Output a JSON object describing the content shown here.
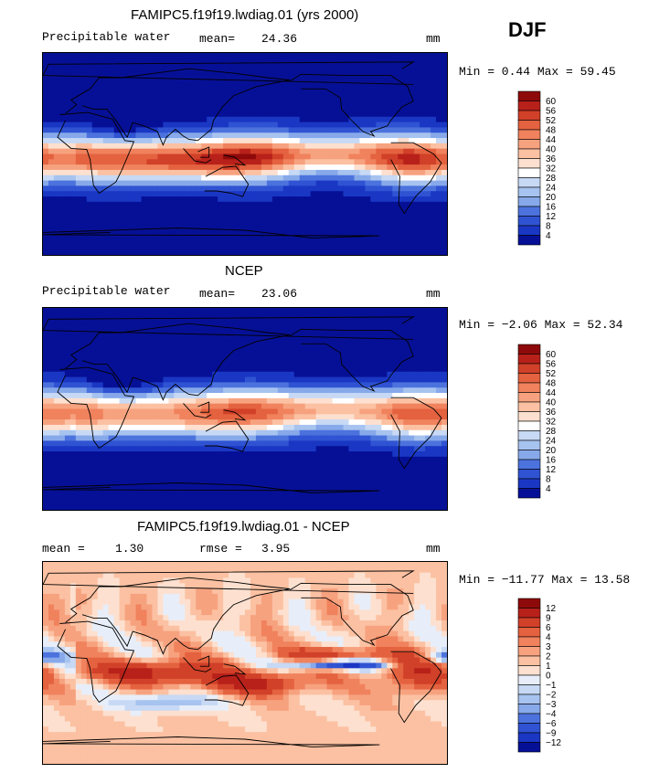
{
  "season": "DJF",
  "palette_warm": [
    "#fde0cf",
    "#fbc1a2",
    "#f7a27f",
    "#f0825d",
    "#e4623f",
    "#d14028",
    "#b8211a",
    "#8e0a0a"
  ],
  "palette_cool": [
    "#e7eef9",
    "#c7d9f4",
    "#a7c3ef",
    "#87a9ea",
    "#6a8fe4",
    "#4c72dd",
    "#2f53d2",
    "#1a37c4",
    "#0c20b0",
    "#061096",
    "#02086f"
  ],
  "panels": [
    {
      "title": "FAMIPC5.f19f19.lwdiag.01 (yrs 2000)",
      "variable": "Precipitable water",
      "stat1": "mean=",
      "stat1_value": "24.36",
      "units": "mm",
      "minmax": "Min =   0.44 Max =  59.45",
      "colorbar_levels": [
        "60",
        "56",
        "52",
        "48",
        "44",
        "40",
        "36",
        "32",
        "28",
        "24",
        "20",
        "16",
        "12",
        "8",
        "4"
      ],
      "colorbar_colors": [
        "#8e0a0a",
        "#b8211a",
        "#d14028",
        "#e4623f",
        "#f0825d",
        "#f7a27f",
        "#fbc1a2",
        "#fde0cf",
        "#ffffff",
        "#c7d9f4",
        "#a7c3ef",
        "#87a9ea",
        "#4c72dd",
        "#2f53d2",
        "#1a37c4",
        "#061096"
      ],
      "field": "model"
    },
    {
      "title": "NCEP",
      "variable": "Precipitable water",
      "stat1": "mean=",
      "stat1_value": "23.06",
      "units": "mm",
      "minmax": "Min =  −2.06 Max =  52.34",
      "colorbar_levels": [
        "60",
        "56",
        "52",
        "48",
        "44",
        "40",
        "36",
        "32",
        "28",
        "24",
        "20",
        "16",
        "12",
        "8",
        "4"
      ],
      "colorbar_colors": [
        "#8e0a0a",
        "#b8211a",
        "#d14028",
        "#e4623f",
        "#f0825d",
        "#f7a27f",
        "#fbc1a2",
        "#fde0cf",
        "#ffffff",
        "#c7d9f4",
        "#a7c3ef",
        "#87a9ea",
        "#4c72dd",
        "#2f53d2",
        "#1a37c4",
        "#061096"
      ],
      "field": "obs"
    },
    {
      "title": "FAMIPC5.f19f19.lwdiag.01 - NCEP",
      "variable": "",
      "stat1": "mean =",
      "stat1_value": "1.30",
      "stat2": "rmse =",
      "stat2_value": "3.95",
      "units": "mm",
      "minmax": "Min = −11.77 Max =  13.58",
      "colorbar_levels": [
        "12",
        "9",
        "6",
        "4",
        "3",
        "2",
        "1",
        "0",
        "−1",
        "−2",
        "−3",
        "−4",
        "−6",
        "−9",
        "−12"
      ],
      "colorbar_colors": [
        "#8e0a0a",
        "#b8211a",
        "#d14028",
        "#e4623f",
        "#f0825d",
        "#f7a27f",
        "#fbc1a2",
        "#fde0cf",
        "#e7eef9",
        "#c7d9f4",
        "#a7c3ef",
        "#87a9ea",
        "#4c72dd",
        "#2f53d2",
        "#1a37c4",
        "#061096"
      ],
      "field": "diff"
    }
  ]
}
